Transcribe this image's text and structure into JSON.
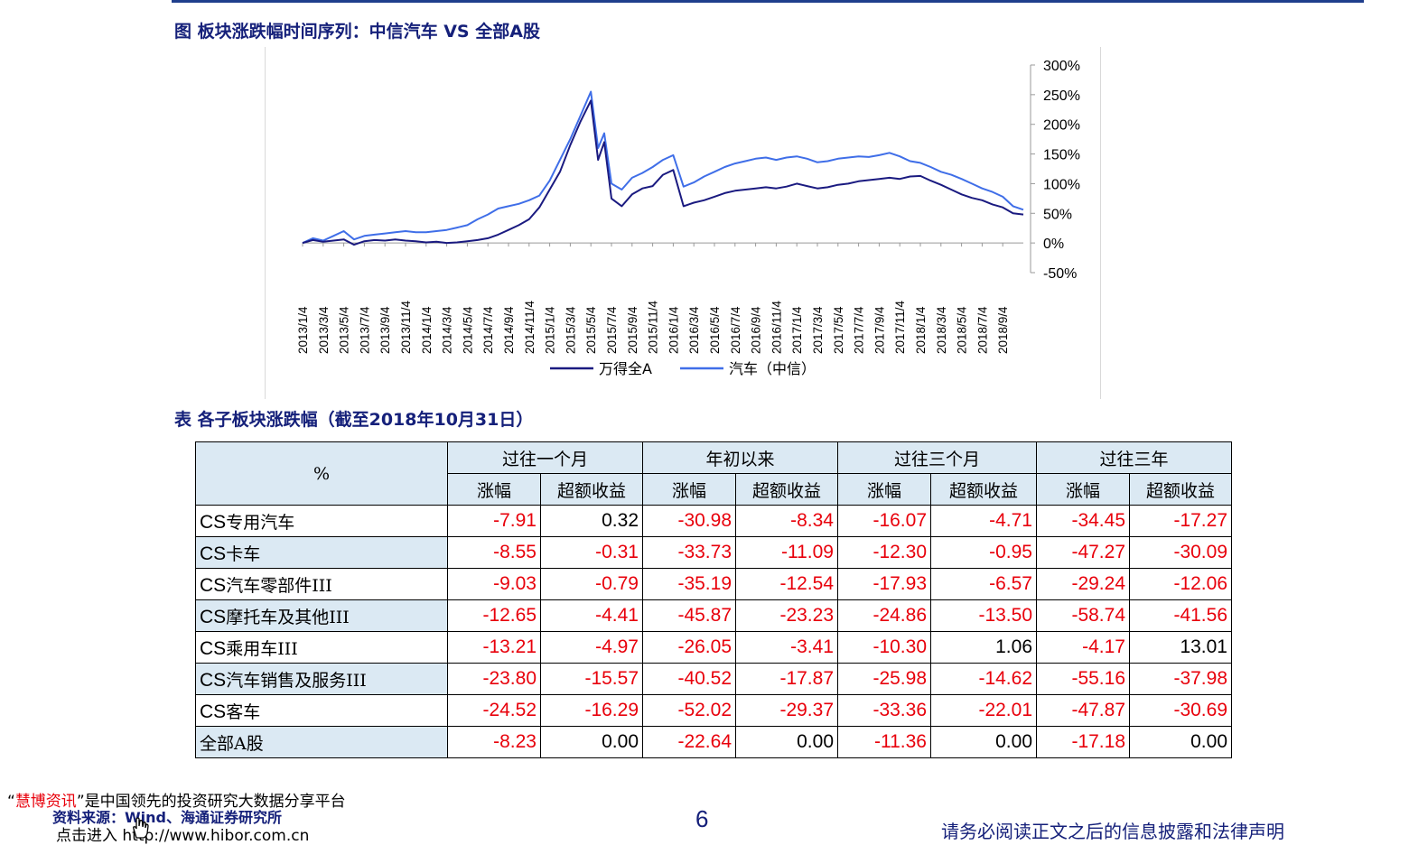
{
  "chart_section_title": "图 板块涨跌幅时间序列：中信汽车 VS 全部A股",
  "table_section_title": "表 各子板块涨跌幅（截至2018年10月31日）",
  "chart_data": {
    "type": "line",
    "x_tick_labels": [
      "2013/1/4",
      "2013/3/4",
      "2013/5/4",
      "2013/7/4",
      "2013/9/4",
      "2013/11/4",
      "2014/1/4",
      "2014/3/4",
      "2014/5/4",
      "2014/7/4",
      "2014/9/4",
      "2014/11/4",
      "2015/1/4",
      "2015/3/4",
      "2015/5/4",
      "2015/7/4",
      "2015/9/4",
      "2015/11/4",
      "2016/1/4",
      "2016/3/4",
      "2016/5/4",
      "2016/7/4",
      "2016/9/4",
      "2016/11/4",
      "2017/1/4",
      "2017/3/4",
      "2017/5/4",
      "2017/7/4",
      "2017/9/4",
      "2017/11/4",
      "2018/1/4",
      "2018/3/4",
      "2018/5/4",
      "2018/7/4",
      "2018/9/4"
    ],
    "y_tick_labels": [
      "300%",
      "250%",
      "200%",
      "150%",
      "100%",
      "50%",
      "0%",
      "-50%"
    ],
    "y_ticks": [
      300,
      250,
      200,
      150,
      100,
      50,
      0,
      -50
    ],
    "ylim": [
      -50,
      300
    ],
    "x_range_months": [
      0,
      70
    ],
    "legend_position": "bottom",
    "series": [
      {
        "name": "万得全A",
        "color": "#1a1a80",
        "points": [
          [
            0,
            0
          ],
          [
            1,
            5
          ],
          [
            2,
            2
          ],
          [
            3,
            4
          ],
          [
            4,
            6
          ],
          [
            5,
            -3
          ],
          [
            6,
            3
          ],
          [
            7,
            5
          ],
          [
            8,
            4
          ],
          [
            9,
            6
          ],
          [
            10,
            4
          ],
          [
            11,
            3
          ],
          [
            12,
            1
          ],
          [
            13,
            2
          ],
          [
            14,
            0
          ],
          [
            15,
            1
          ],
          [
            16,
            3
          ],
          [
            17,
            5
          ],
          [
            18,
            8
          ],
          [
            19,
            14
          ],
          [
            20,
            22
          ],
          [
            21,
            30
          ],
          [
            22,
            40
          ],
          [
            23,
            60
          ],
          [
            24,
            90
          ],
          [
            25,
            120
          ],
          [
            26,
            165
          ],
          [
            27,
            205
          ],
          [
            28,
            240
          ],
          [
            28.7,
            140
          ],
          [
            29.3,
            170
          ],
          [
            30,
            75
          ],
          [
            31,
            62
          ],
          [
            32,
            82
          ],
          [
            33,
            92
          ],
          [
            34,
            96
          ],
          [
            35,
            115
          ],
          [
            36,
            123
          ],
          [
            37,
            62
          ],
          [
            38,
            68
          ],
          [
            39,
            72
          ],
          [
            40,
            78
          ],
          [
            41,
            84
          ],
          [
            42,
            88
          ],
          [
            43,
            90
          ],
          [
            44,
            92
          ],
          [
            45,
            94
          ],
          [
            46,
            92
          ],
          [
            47,
            95
          ],
          [
            48,
            100
          ],
          [
            49,
            96
          ],
          [
            50,
            92
          ],
          [
            51,
            94
          ],
          [
            52,
            98
          ],
          [
            53,
            100
          ],
          [
            54,
            104
          ],
          [
            55,
            106
          ],
          [
            56,
            108
          ],
          [
            57,
            110
          ],
          [
            58,
            108
          ],
          [
            59,
            112
          ],
          [
            60,
            113
          ],
          [
            61,
            105
          ],
          [
            62,
            98
          ],
          [
            63,
            90
          ],
          [
            64,
            82
          ],
          [
            65,
            76
          ],
          [
            66,
            72
          ],
          [
            67,
            65
          ],
          [
            68,
            60
          ],
          [
            69,
            50
          ],
          [
            70,
            48
          ]
        ]
      },
      {
        "name": "汽车（中信）",
        "color": "#3f6ee8",
        "points": [
          [
            0,
            0
          ],
          [
            1,
            8
          ],
          [
            2,
            4
          ],
          [
            3,
            12
          ],
          [
            4,
            20
          ],
          [
            5,
            6
          ],
          [
            6,
            12
          ],
          [
            7,
            14
          ],
          [
            8,
            16
          ],
          [
            9,
            18
          ],
          [
            10,
            20
          ],
          [
            11,
            18
          ],
          [
            12,
            18
          ],
          [
            13,
            20
          ],
          [
            14,
            22
          ],
          [
            15,
            26
          ],
          [
            16,
            30
          ],
          [
            17,
            40
          ],
          [
            18,
            48
          ],
          [
            19,
            58
          ],
          [
            20,
            62
          ],
          [
            21,
            66
          ],
          [
            22,
            72
          ],
          [
            23,
            80
          ],
          [
            24,
            105
          ],
          [
            25,
            140
          ],
          [
            26,
            175
          ],
          [
            27,
            215
          ],
          [
            28,
            255
          ],
          [
            28.7,
            160
          ],
          [
            29.3,
            185
          ],
          [
            30,
            100
          ],
          [
            31,
            90
          ],
          [
            32,
            110
          ],
          [
            33,
            118
          ],
          [
            34,
            128
          ],
          [
            35,
            140
          ],
          [
            36,
            148
          ],
          [
            37,
            95
          ],
          [
            38,
            102
          ],
          [
            39,
            112
          ],
          [
            40,
            120
          ],
          [
            41,
            128
          ],
          [
            42,
            134
          ],
          [
            43,
            138
          ],
          [
            44,
            142
          ],
          [
            45,
            144
          ],
          [
            46,
            140
          ],
          [
            47,
            144
          ],
          [
            48,
            146
          ],
          [
            49,
            142
          ],
          [
            50,
            136
          ],
          [
            51,
            138
          ],
          [
            52,
            142
          ],
          [
            53,
            144
          ],
          [
            54,
            146
          ],
          [
            55,
            145
          ],
          [
            56,
            148
          ],
          [
            57,
            152
          ],
          [
            58,
            146
          ],
          [
            59,
            138
          ],
          [
            60,
            135
          ],
          [
            61,
            128
          ],
          [
            62,
            120
          ],
          [
            63,
            115
          ],
          [
            64,
            108
          ],
          [
            65,
            100
          ],
          [
            66,
            92
          ],
          [
            67,
            86
          ],
          [
            68,
            78
          ],
          [
            69,
            62
          ],
          [
            70,
            56
          ]
        ]
      }
    ]
  },
  "table": {
    "corner_label": "%",
    "groups": [
      "过往一个月",
      "年初以来",
      "过往三个月",
      "过往三年"
    ],
    "sub_headers": [
      "涨幅",
      "超额收益"
    ],
    "rows": [
      {
        "prefix": "CS",
        "name": "专用汽车",
        "values": [
          "-7.91",
          "0.32",
          "-30.98",
          "-8.34",
          "-16.07",
          "-4.71",
          "-34.45",
          "-17.27"
        ]
      },
      {
        "prefix": "CS",
        "name": "卡车",
        "values": [
          "-8.55",
          "-0.31",
          "-33.73",
          "-11.09",
          "-12.30",
          "-0.95",
          "-47.27",
          "-30.09"
        ]
      },
      {
        "prefix": "CS",
        "name": "汽车零部件III",
        "values": [
          "-9.03",
          "-0.79",
          "-35.19",
          "-12.54",
          "-17.93",
          "-6.57",
          "-29.24",
          "-12.06"
        ]
      },
      {
        "prefix": "CS",
        "name": "摩托车及其他III",
        "values": [
          "-12.65",
          "-4.41",
          "-45.87",
          "-23.23",
          "-24.86",
          "-13.50",
          "-58.74",
          "-41.56"
        ]
      },
      {
        "prefix": "CS",
        "name": "乘用车III",
        "values": [
          "-13.21",
          "-4.97",
          "-26.05",
          "-3.41",
          "-10.30",
          "1.06",
          "-4.17",
          "13.01"
        ]
      },
      {
        "prefix": "CS",
        "name": "汽车销售及服务III",
        "values": [
          "-23.80",
          "-15.57",
          "-40.52",
          "-17.87",
          "-25.98",
          "-14.62",
          "-55.16",
          "-37.98"
        ]
      },
      {
        "prefix": "CS",
        "name": "客车",
        "values": [
          "-24.52",
          "-16.29",
          "-52.02",
          "-29.37",
          "-33.36",
          "-22.01",
          "-47.87",
          "-30.69"
        ]
      },
      {
        "prefix": "",
        "name": "全部A股",
        "values": [
          "-8.23",
          "0.00",
          "-22.64",
          "0.00",
          "-11.36",
          "0.00",
          "-17.18",
          "0.00"
        ]
      }
    ]
  },
  "footer": {
    "slogan_open": "“",
    "slogan_brand": "慧博资讯",
    "slogan_rest": "”是中国领先的投资研究大数据分享平台",
    "source": "资料来源：Wind、海通证券研究所",
    "link": "点击进入 http://www.hibor.com.cn",
    "page_number": "6",
    "disclaimer": "请务必阅读正文之后的信息披露和法律声明"
  },
  "colors": {
    "negative": "#e8000b",
    "header_bg": "#dbe9f3",
    "title": "#15207a"
  }
}
